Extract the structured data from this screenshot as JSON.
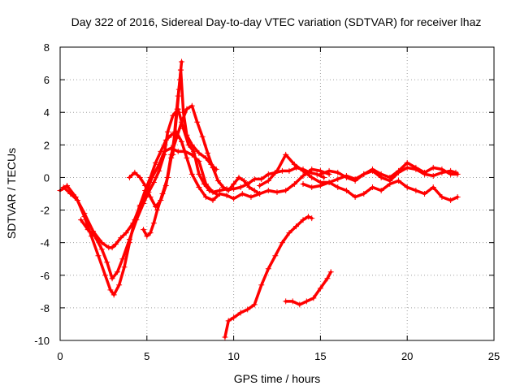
{
  "chart_data": {
    "type": "scatter",
    "title": "Day 322 of 2016, Sidereal Day-to-day VTEC variation (SDTVAR) for receiver lhaz",
    "xlabel": "GPS time / hours",
    "ylabel": "SDTVAR / TECUs",
    "xlim": [
      0,
      25
    ],
    "ylim": [
      -10,
      8
    ],
    "xticks": [
      0,
      5,
      10,
      15,
      20,
      25
    ],
    "yticks": [
      -10,
      -8,
      -6,
      -4,
      -2,
      0,
      2,
      4,
      6,
      8
    ],
    "grid": true,
    "marker": "+",
    "color": "#ff0000",
    "series": [
      {
        "name": "arc-a",
        "x": [
          0.0,
          0.4,
          0.9,
          1.4,
          1.9,
          2.4,
          2.8,
          3.0,
          3.2,
          3.5,
          3.8,
          4.2,
          4.6,
          5.0,
          5.3,
          5.7,
          6.0,
          6.4,
          6.8,
          7.2,
          7.6,
          8.0,
          8.4,
          8.8,
          9.2,
          9.6,
          10.0,
          10.4,
          10.8,
          11.2,
          11.6,
          12.0,
          12.4,
          12.8,
          13.2,
          13.6,
          14.0,
          14.4,
          14.8,
          15.2
        ],
        "y": [
          -0.8,
          -0.5,
          -1.2,
          -2.2,
          -3.3,
          -4.0,
          -4.3,
          -4.3,
          -4.1,
          -3.7,
          -3.4,
          -2.8,
          -1.8,
          -0.8,
          0.0,
          0.8,
          1.6,
          1.8,
          1.6,
          1.6,
          1.4,
          1.0,
          -0.4,
          -0.9,
          -0.8,
          -0.7,
          -0.7,
          -0.6,
          -0.4,
          -0.1,
          -0.1,
          0.2,
          0.3,
          0.4,
          0.4,
          0.6,
          0.5,
          0.3,
          0.2,
          0.0
        ]
      },
      {
        "name": "arc-b",
        "x": [
          0.2,
          0.6,
          1.0,
          1.4,
          1.8,
          2.2,
          2.6,
          2.9,
          3.1,
          3.4,
          3.7,
          4.0,
          4.3,
          4.6,
          4.9,
          5.2,
          5.5,
          5.8,
          6.1,
          6.4,
          6.7,
          7.0,
          7.3,
          7.6,
          8.0,
          8.4,
          8.8,
          9.2,
          9.6,
          10.0,
          10.5,
          11.0,
          11.5,
          12.0,
          12.5,
          13.0,
          13.5,
          14.0,
          14.5,
          15.0,
          15.5
        ],
        "y": [
          -0.6,
          -1.0,
          -1.4,
          -2.4,
          -3.6,
          -4.8,
          -6.0,
          -6.9,
          -7.2,
          -6.6,
          -5.5,
          -4.0,
          -2.6,
          -1.7,
          -0.8,
          0.0,
          0.9,
          1.6,
          2.3,
          2.6,
          2.8,
          2.2,
          1.2,
          0.2,
          -0.6,
          -1.2,
          -1.4,
          -1.0,
          -1.1,
          -1.3,
          -1.0,
          -1.2,
          -1.0,
          -0.8,
          -0.9,
          -0.8,
          -0.4,
          0.1,
          0.5,
          0.4,
          0.2
        ]
      },
      {
        "name": "arc-c",
        "x": [
          1.2,
          1.6,
          2.0,
          2.4,
          2.7,
          3.0,
          3.3,
          3.6,
          4.0,
          4.4,
          4.8,
          5.1,
          5.4,
          5.7,
          6.0,
          6.2,
          6.5,
          6.8,
          7.1,
          7.4,
          7.7,
          8.0,
          8.3,
          8.6,
          9.0
        ],
        "y": [
          -2.6,
          -3.2,
          -3.6,
          -4.4,
          -5.2,
          -6.2,
          -5.8,
          -5.0,
          -3.8,
          -2.6,
          -1.6,
          -0.9,
          -0.3,
          0.4,
          1.4,
          2.8,
          3.8,
          4.2,
          3.0,
          2.0,
          1.6,
          0.2,
          -0.4,
          -0.8,
          -1.0
        ]
      },
      {
        "name": "arc-d",
        "x": [
          4.0,
          4.3,
          4.6,
          4.9,
          5.2,
          5.5,
          5.8,
          6.1,
          6.4,
          6.7,
          7.0,
          7.3,
          7.6,
          7.9,
          8.2,
          8.5,
          8.8,
          9.1,
          9.4,
          9.7,
          10.0,
          10.3,
          10.6,
          10.9,
          11.2,
          11.5
        ],
        "y": [
          0.0,
          0.3,
          0.0,
          -0.5,
          -1.2,
          -1.8,
          -1.4,
          -0.5,
          1.4,
          2.4,
          3.4,
          4.2,
          4.4,
          3.4,
          2.5,
          1.5,
          0.6,
          -0.2,
          -0.6,
          -0.8,
          -0.4,
          0.0,
          -0.2,
          -0.6,
          -0.8,
          -1.0
        ]
      },
      {
        "name": "arc-e",
        "x": [
          4.8,
          5.0,
          5.2,
          5.4,
          5.6,
          5.9,
          6.2,
          6.4,
          6.6,
          6.75,
          6.85,
          6.95,
          7.1,
          7.3,
          7.6,
          8.0,
          8.4,
          8.7,
          9.0
        ],
        "y": [
          -3.2,
          -3.6,
          -3.4,
          -2.8,
          -2.0,
          -1.0,
          0.0,
          1.2,
          2.6,
          4.2,
          5.4,
          6.6,
          4.0,
          2.6,
          2.0,
          1.5,
          1.2,
          0.8,
          0.5
        ]
      },
      {
        "name": "arc-f",
        "x": [
          6.5,
          6.6,
          6.7,
          6.8,
          6.9,
          6.95,
          7.0
        ],
        "y": [
          1.4,
          2.8,
          4.0,
          5.0,
          6.0,
          6.6,
          7.1
        ]
      },
      {
        "name": "arc-g",
        "x": [
          11.5,
          12.0,
          12.5,
          13.0,
          13.5,
          14.0,
          14.5,
          15.0,
          15.5,
          16.0,
          16.5,
          17.0,
          17.5,
          18.0,
          18.5,
          19.0,
          19.5,
          20.0,
          20.5,
          21.0,
          21.5,
          22.0,
          22.5,
          22.8
        ],
        "y": [
          -0.5,
          -0.2,
          0.4,
          1.4,
          0.8,
          0.4,
          0.0,
          -0.3,
          -0.3,
          -0.1,
          0.1,
          -0.1,
          0.2,
          0.4,
          0.0,
          -0.2,
          0.3,
          0.6,
          0.5,
          0.2,
          0.1,
          0.3,
          0.4,
          0.3
        ]
      },
      {
        "name": "arc-h",
        "x": [
          14.0,
          14.5,
          15.0,
          15.5,
          16.0,
          16.5,
          17.0,
          17.5,
          18.0,
          18.5,
          19.0,
          19.5,
          20.0,
          20.5,
          21.0,
          21.5,
          22.0,
          22.5,
          22.9
        ],
        "y": [
          -0.4,
          -0.6,
          -0.5,
          -0.3,
          -0.6,
          -0.8,
          -1.2,
          -1.0,
          -0.6,
          -0.8,
          -0.4,
          -0.2,
          -0.6,
          -0.8,
          -1.0,
          -0.6,
          -1.2,
          -1.4,
          -1.2
        ]
      },
      {
        "name": "arc-i",
        "x": [
          15.0,
          15.5,
          16.0,
          16.5,
          17.0,
          17.5,
          18.0,
          18.5,
          19.0,
          19.5,
          20.0,
          20.5,
          21.0,
          21.5,
          22.0,
          22.5,
          22.9
        ],
        "y": [
          0.2,
          0.4,
          0.3,
          0.0,
          -0.2,
          0.2,
          0.5,
          0.2,
          0.0,
          0.4,
          0.9,
          0.6,
          0.3,
          0.6,
          0.5,
          0.2,
          0.2
        ]
      },
      {
        "name": "arc-j",
        "x": [
          9.5,
          9.7,
          10.0,
          10.4,
          10.8,
          11.2,
          11.6,
          12.0,
          12.4,
          12.8,
          13.2,
          13.6,
          14.0,
          14.3,
          14.5
        ],
        "y": [
          -9.8,
          -8.8,
          -8.6,
          -8.3,
          -8.1,
          -7.8,
          -6.6,
          -5.6,
          -4.8,
          -4.0,
          -3.4,
          -3.0,
          -2.6,
          -2.4,
          -2.5
        ]
      },
      {
        "name": "arc-k",
        "x": [
          13.0,
          13.4,
          13.8,
          14.2,
          14.6,
          15.0,
          15.4,
          15.6
        ],
        "y": [
          -7.6,
          -7.6,
          -7.8,
          -7.6,
          -7.4,
          -6.8,
          -6.2,
          -5.8
        ]
      }
    ]
  }
}
